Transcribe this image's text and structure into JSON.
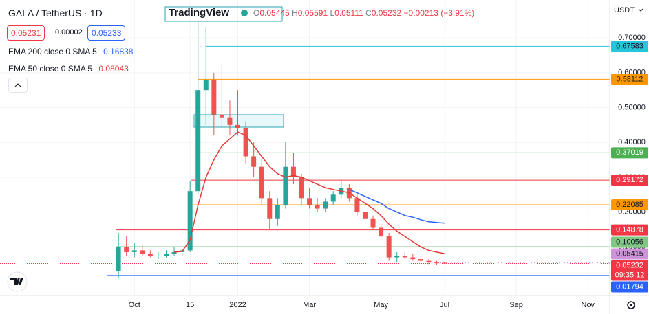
{
  "header": {
    "symbol": "GALA / TetherUS · 1D",
    "brand": "TradingView",
    "o_label": "O",
    "h_label": "H",
    "l_label": "L",
    "c_label": "C",
    "change": "−0.00213 (−3.91%)",
    "currency": "USDT",
    "countdown": "09:35:12"
  },
  "quote": {
    "sell": "0.05231",
    "spread": "0.00002",
    "buy": "0.05233"
  },
  "chart_data": {
    "type": "candlestick",
    "categories": [
      null,
      null,
      null,
      null,
      "Oct",
      null,
      null,
      null,
      null,
      null,
      null,
      "15",
      null,
      null,
      null,
      null,
      null,
      "2022",
      null,
      null,
      null,
      null,
      null,
      null,
      null,
      null,
      "Mar",
      null,
      null,
      null,
      null,
      null,
      null,
      null,
      null,
      "May",
      null,
      null,
      null,
      null,
      null,
      null,
      null,
      "Jul",
      null,
      null,
      null,
      null,
      null,
      null,
      null,
      null,
      "Sep",
      null,
      null,
      null,
      null,
      null,
      null,
      null,
      null,
      "Nov",
      null,
      null
    ],
    "open": [
      null,
      null,
      0.03,
      0.1,
      0.085,
      0.09,
      0.08,
      0.075,
      0.075,
      0.08,
      0.085,
      0.09,
      0.26,
      0.55,
      0.58,
      0.48,
      0.47,
      0.45,
      0.44,
      0.36,
      0.33,
      0.24,
      0.18,
      0.22,
      0.33,
      0.3,
      0.24,
      0.22,
      0.21,
      0.23,
      0.25,
      0.27,
      0.24,
      0.2,
      0.18,
      0.155,
      0.13,
      0.07,
      0.075,
      0.07,
      0.065,
      0.06,
      0.055,
      0.05445,
      null,
      null,
      null,
      null,
      null,
      null,
      null,
      null,
      null,
      null,
      null,
      null,
      null,
      null,
      null,
      null,
      null,
      null,
      null,
      null
    ],
    "high": [
      null,
      null,
      0.14,
      0.13,
      0.11,
      0.105,
      0.09,
      0.085,
      0.09,
      0.1,
      0.095,
      0.29,
      0.75,
      0.73,
      0.6,
      0.63,
      0.52,
      0.55,
      0.46,
      0.4,
      0.35,
      0.26,
      0.24,
      0.4,
      0.37,
      0.31,
      0.27,
      0.24,
      0.24,
      0.26,
      0.29,
      0.28,
      0.25,
      0.21,
      0.19,
      0.165,
      0.14,
      0.085,
      0.085,
      0.08,
      0.072,
      0.065,
      0.06,
      0.05591,
      null,
      null,
      null,
      null,
      null,
      null,
      null,
      null,
      null,
      null,
      null,
      null,
      null,
      null,
      null,
      null,
      null,
      null,
      null,
      null
    ],
    "low": [
      null,
      null,
      0.012,
      0.075,
      0.07,
      0.075,
      0.07,
      0.065,
      0.07,
      0.075,
      0.075,
      0.085,
      0.25,
      0.45,
      0.42,
      0.44,
      0.42,
      0.42,
      0.34,
      0.3,
      0.22,
      0.15,
      0.16,
      0.21,
      0.28,
      0.22,
      0.21,
      0.2,
      0.2,
      0.22,
      0.24,
      0.23,
      0.19,
      0.17,
      0.15,
      0.12,
      0.06,
      0.055,
      0.065,
      0.06,
      0.055,
      0.05,
      0.048,
      0.05111,
      null,
      null,
      null,
      null,
      null,
      null,
      null,
      null,
      null,
      null,
      null,
      null,
      null,
      null,
      null,
      null,
      null,
      null,
      null,
      null
    ],
    "close": [
      null,
      null,
      0.1,
      0.085,
      0.09,
      0.08,
      0.075,
      0.075,
      0.08,
      0.085,
      0.09,
      0.26,
      0.55,
      0.58,
      0.48,
      0.47,
      0.45,
      0.44,
      0.36,
      0.33,
      0.24,
      0.18,
      0.22,
      0.33,
      0.3,
      0.24,
      0.22,
      0.21,
      0.23,
      0.25,
      0.27,
      0.24,
      0.2,
      0.18,
      0.155,
      0.13,
      0.07,
      0.075,
      0.07,
      0.065,
      0.06,
      0.055,
      0.053,
      0.05232,
      null,
      null,
      null,
      null,
      null,
      null,
      null,
      null,
      null,
      null,
      null,
      null,
      null,
      null,
      null,
      null,
      null,
      null,
      null,
      null
    ],
    "up_color": "#26a69a",
    "down_color": "#ef5350",
    "series": [
      {
        "name": "EMA 200 close 0 SMA 5",
        "color": "#2962ff",
        "values": [
          null,
          null,
          null,
          null,
          null,
          null,
          null,
          null,
          null,
          null,
          null,
          null,
          null,
          null,
          null,
          null,
          null,
          null,
          null,
          null,
          null,
          null,
          null,
          null,
          null,
          null,
          null,
          null,
          null,
          null,
          null,
          0.265,
          0.255,
          0.245,
          0.235,
          0.225,
          0.21,
          0.2,
          0.19,
          0.185,
          0.178,
          0.172,
          0.17,
          0.16838,
          null,
          null,
          null,
          null,
          null,
          null,
          null,
          null,
          null,
          null,
          null,
          null,
          null,
          null,
          null,
          null,
          null,
          null,
          null,
          null
        ]
      },
      {
        "name": "EMA 50 close 0 SMA 5",
        "color": "#e53935",
        "values": [
          null,
          null,
          null,
          null,
          null,
          null,
          null,
          null,
          null,
          0.085,
          0.087,
          0.12,
          0.22,
          0.3,
          0.35,
          0.39,
          0.41,
          0.43,
          0.42,
          0.39,
          0.36,
          0.33,
          0.31,
          0.3,
          0.305,
          0.3,
          0.29,
          0.28,
          0.27,
          0.265,
          0.26,
          0.255,
          0.24,
          0.225,
          0.21,
          0.19,
          0.165,
          0.145,
          0.13,
          0.115,
          0.1,
          0.09,
          0.085,
          0.08043,
          null,
          null,
          null,
          null,
          null,
          null,
          null,
          null,
          null,
          null,
          null,
          null,
          null,
          null,
          null,
          null,
          null,
          null,
          null,
          null
        ]
      }
    ],
    "levels": [
      {
        "value": 0.67583,
        "color": "#26c6da",
        "text_color": "#131722"
      },
      {
        "value": 0.58112,
        "color": "#ff9800",
        "text_color": "#131722"
      },
      {
        "value": 0.37019,
        "color": "#4caf50",
        "text_color": "#ffffff"
      },
      {
        "value": 0.29172,
        "color": "#f23645",
        "text_color": "#ffffff"
      },
      {
        "value": 0.22085,
        "color": "#ff9800",
        "text_color": "#131722"
      },
      {
        "value": 0.14878,
        "color": "#f23645",
        "text_color": "#ffffff"
      },
      {
        "value": 0.10056,
        "color": "#81c784",
        "text_color": "#131722"
      },
      {
        "value": 0.05415,
        "color": "#ce93d8",
        "text_color": "#131722"
      },
      {
        "value": 0.01794,
        "color": "#2962ff",
        "text_color": "#ffffff"
      }
    ],
    "last_color": "#f23645",
    "ylim": [
      -0.0394,
      0.8087
    ],
    "yticks": [
      {
        "value": 0.1,
        "label": "0.10000"
      },
      {
        "value": 0.2,
        "label": "0.20000"
      },
      {
        "value": 0.3,
        "label": "0.30000"
      },
      {
        "value": 0.4,
        "label": "0.40000"
      },
      {
        "value": 0.5,
        "label": "0.50000"
      },
      {
        "value": 0.6,
        "label": "0.60000"
      },
      {
        "value": 0.7,
        "label": "0.70000"
      }
    ]
  }
}
